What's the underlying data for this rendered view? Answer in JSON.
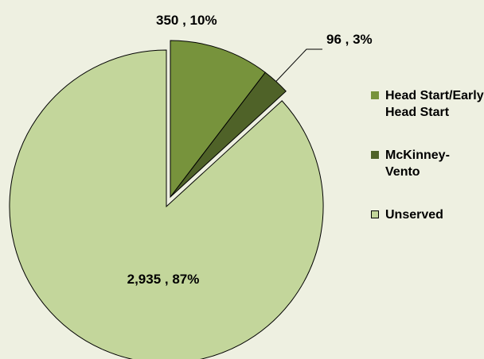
{
  "chart_data": {
    "type": "pie",
    "categories": [
      "Head Start/Early Head Start",
      "McKinney-Vento",
      "Unserved"
    ],
    "values": [
      350,
      96,
      2935
    ],
    "value_labels": [
      "350 , 10%",
      "96 , 3%",
      "2,935 , 87%"
    ],
    "colors": [
      "#77933c",
      "#4f6228",
      "#c3d69b"
    ],
    "legend": "right"
  }
}
